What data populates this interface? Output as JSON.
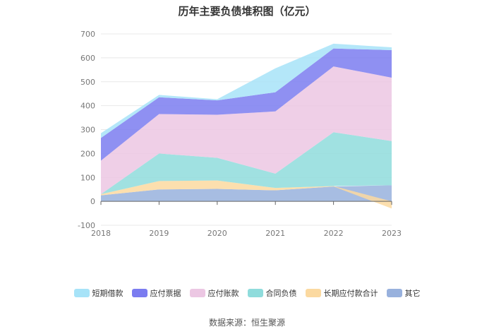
{
  "chart_data": {
    "type": "area",
    "stacked": true,
    "title": "历年主要负债堆积图（亿元）",
    "x": [
      "2018",
      "2019",
      "2020",
      "2021",
      "2022",
      "2023"
    ],
    "yticks": [
      "-100",
      "0",
      "100",
      "200",
      "300",
      "400",
      "500",
      "600",
      "700"
    ],
    "ylim": [
      -100,
      700
    ],
    "grid": true,
    "legend_position": "bottom",
    "series": [
      {
        "name": "短期借款",
        "color": "#a7e3f8",
        "values": [
          20,
          10,
          5,
          100,
          20,
          12
        ]
      },
      {
        "name": "应付票据",
        "color": "#7b7cf0",
        "values": [
          95,
          70,
          60,
          80,
          75,
          115
        ]
      },
      {
        "name": "应付账款",
        "color": "#ecc7e3",
        "values": [
          140,
          165,
          180,
          260,
          275,
          265
        ]
      },
      {
        "name": "合同负债",
        "color": "#8fdcdc",
        "values": [
          0,
          115,
          95,
          60,
          225,
          185
        ]
      },
      {
        "name": "长期应付款合计",
        "color": "#fbd9a0",
        "values": [
          5,
          35,
          35,
          10,
          2,
          -30
        ]
      },
      {
        "name": "其它",
        "color": "#98b1dd",
        "values": [
          25,
          50,
          52,
          46,
          62,
          67
        ]
      }
    ]
  },
  "footer": {
    "source": "数据来源：恒生聚源"
  }
}
